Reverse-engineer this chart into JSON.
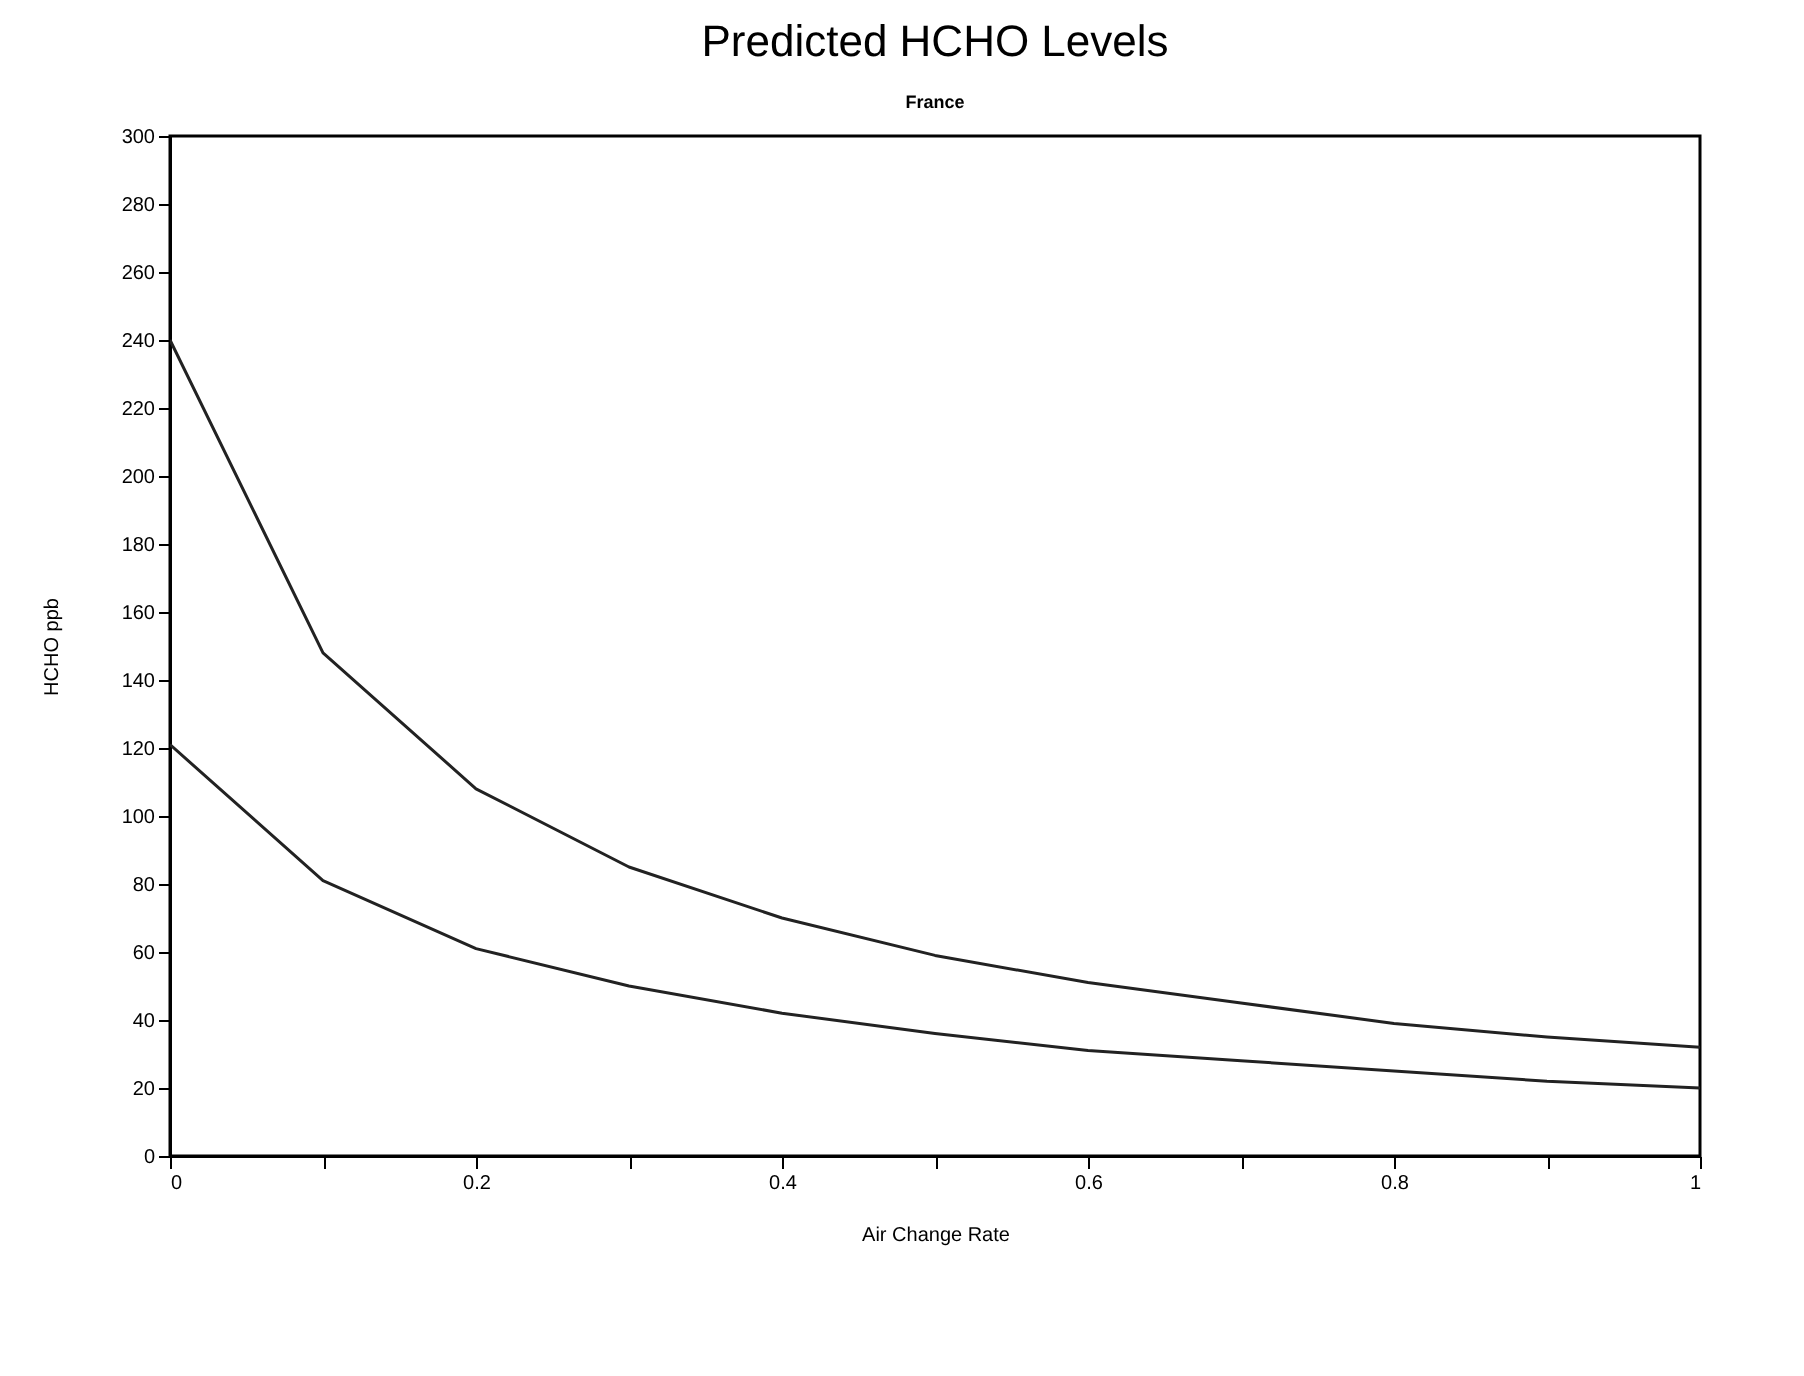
{
  "chart_data": {
    "type": "line",
    "title": "Predicted HCHO Levels",
    "subtitle": "France",
    "xlabel": "Air Change Rate",
    "ylabel": "HCHO ppb",
    "x": [
      0,
      0.1,
      0.2,
      0.3,
      0.4,
      0.5,
      0.6,
      0.7,
      0.8,
      0.9,
      1
    ],
    "series": [
      {
        "color": "#222222",
        "values": [
          240,
          148,
          108,
          85,
          70,
          59,
          51,
          45,
          39,
          35,
          32
        ]
      },
      {
        "color": "#222222",
        "values": [
          121,
          81,
          61,
          50,
          42,
          36,
          31,
          28,
          25,
          22,
          20
        ]
      }
    ],
    "xlim": [
      0,
      1
    ],
    "xticks": [
      0,
      {
        "value": 0.1,
        "label": null
      },
      {
        "value": 0.2,
        "label": "0.2"
      },
      {
        "value": 0.3,
        "label": null
      },
      {
        "value": 0.4,
        "label": "0.4"
      },
      {
        "value": 0.5,
        "label": null
      },
      {
        "value": 0.6,
        "label": "0.6"
      },
      {
        "value": 0.7,
        "label": null
      },
      {
        "value": 0.8,
        "label": "0.8"
      },
      {
        "value": 0.9,
        "label": null
      },
      1
    ],
    "ylim": [
      0,
      300
    ],
    "yticks": [
      0,
      20,
      40,
      60,
      80,
      100,
      120,
      140,
      160,
      180,
      200,
      220,
      240,
      260,
      280,
      300
    ],
    "grid": false,
    "legend": false,
    "marker": "none",
    "line_style": "solid"
  }
}
